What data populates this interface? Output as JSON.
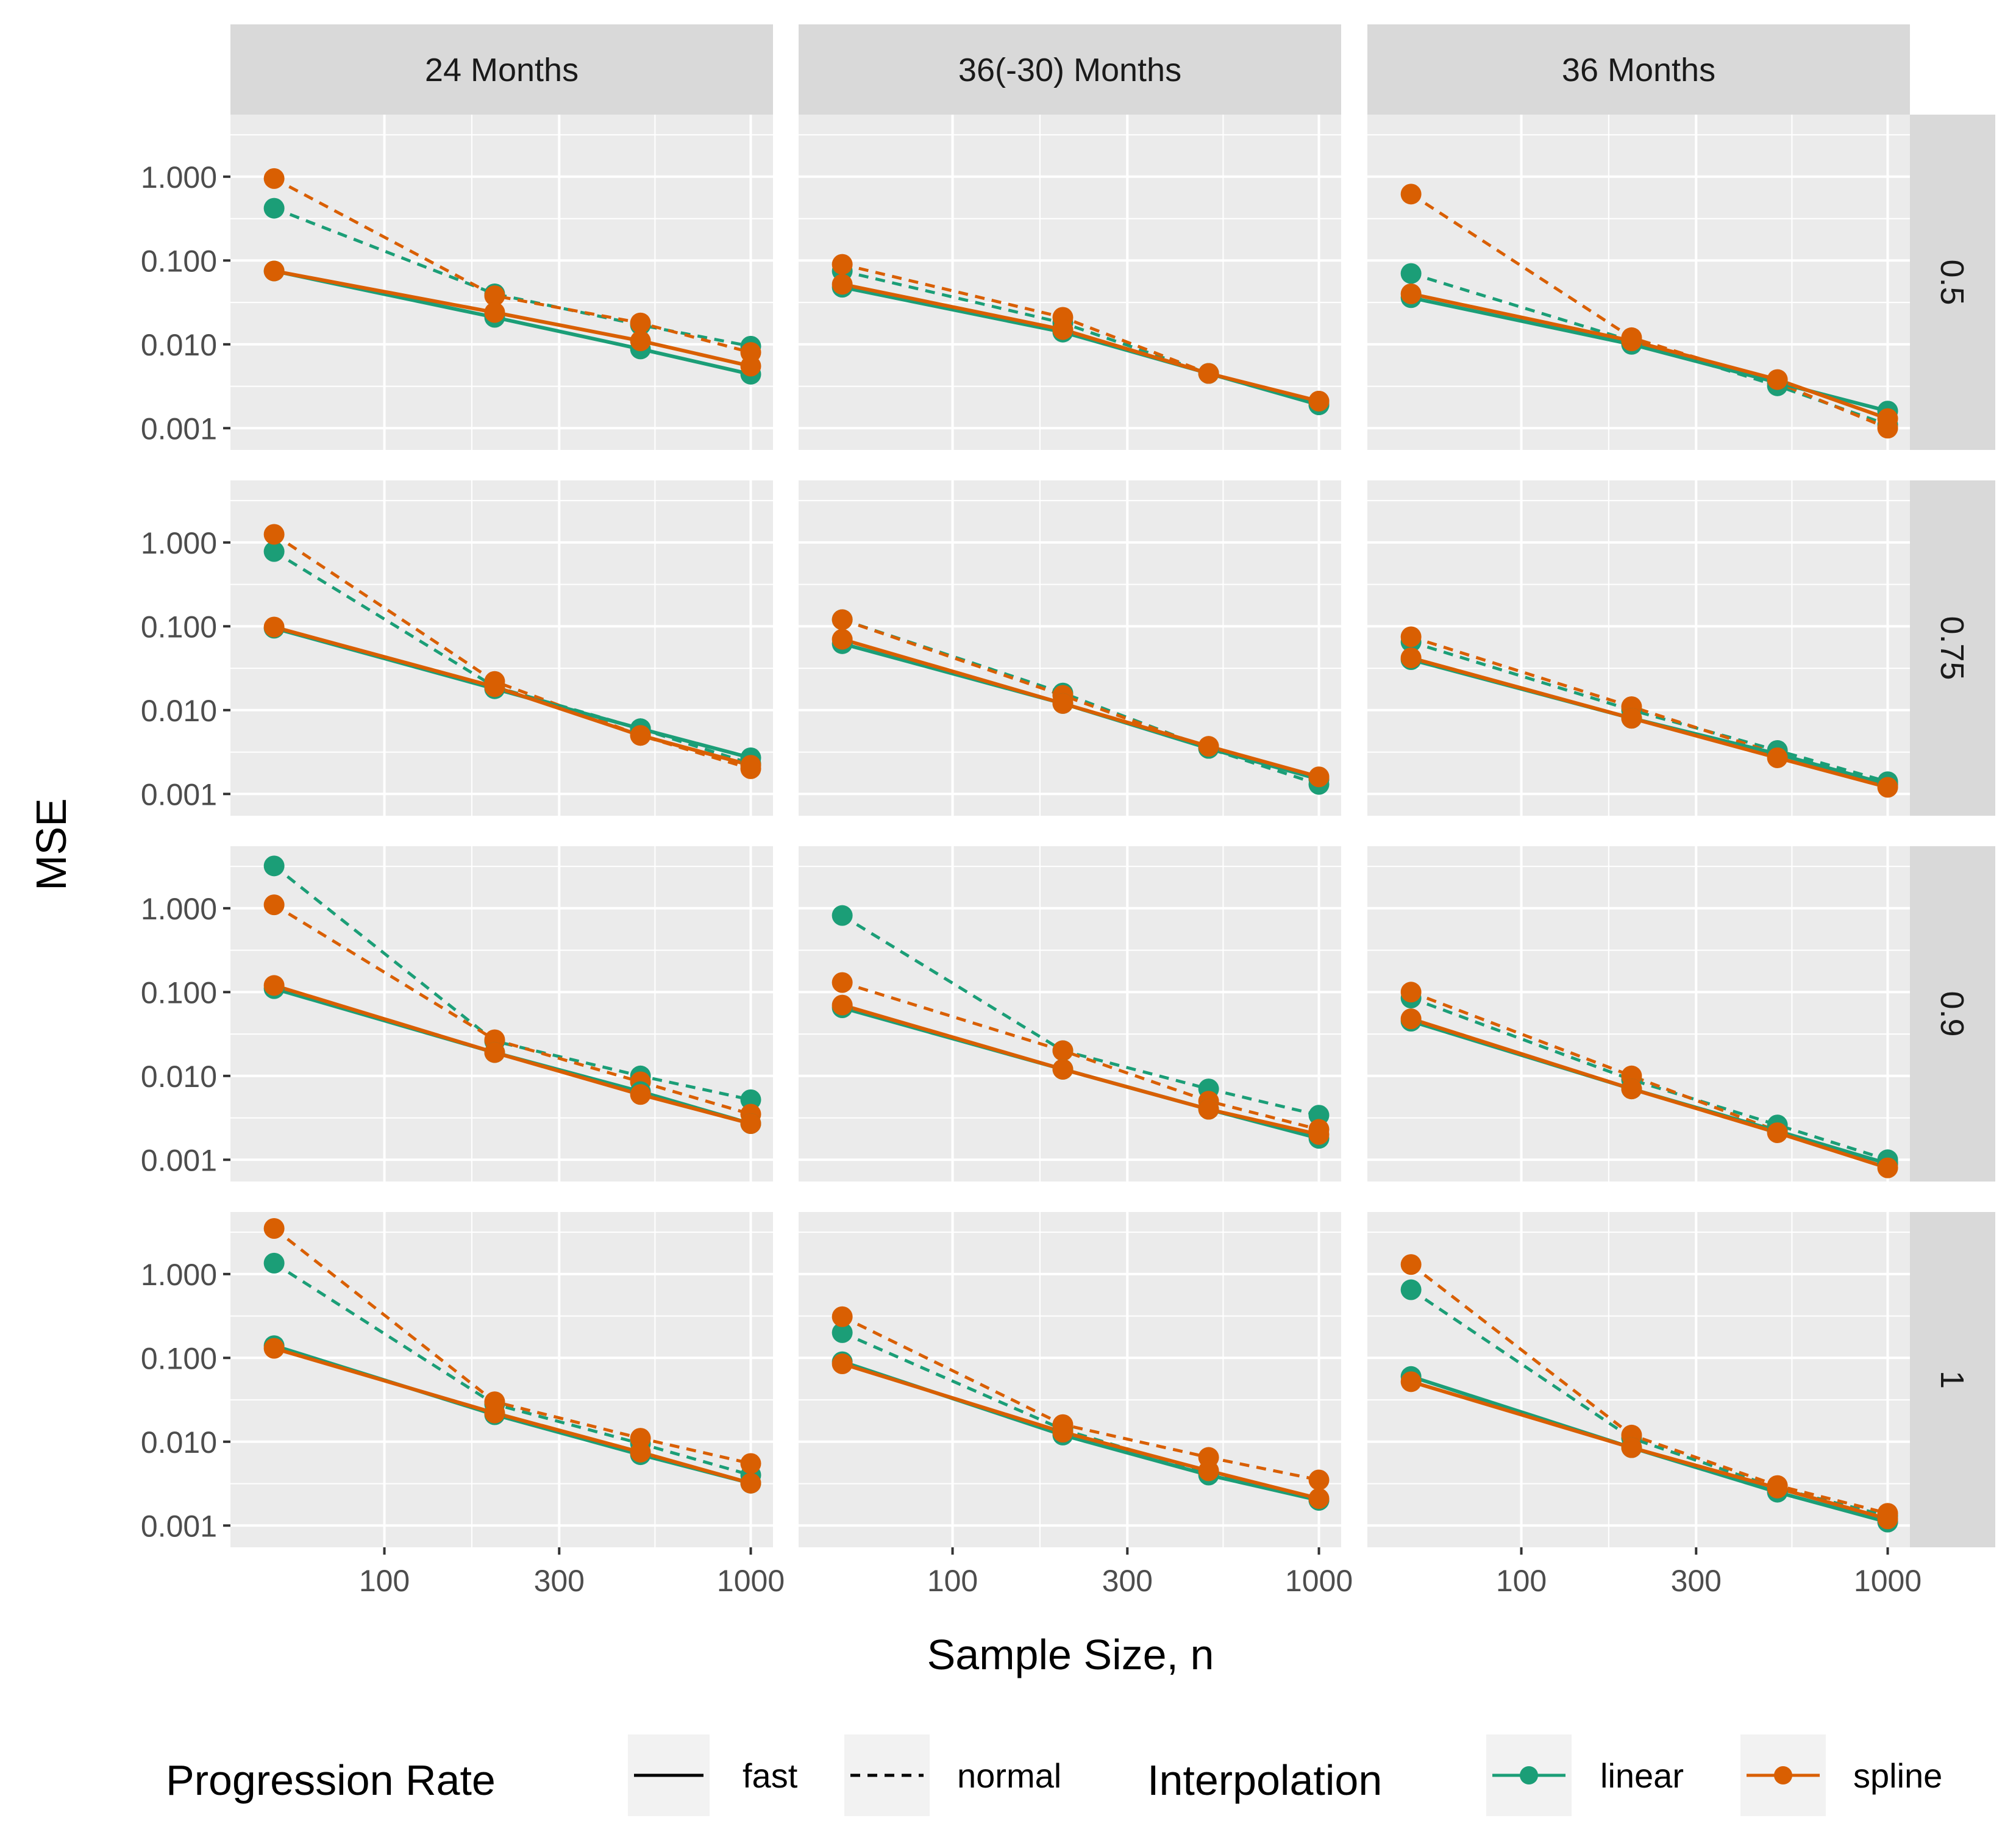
{
  "chart_data": {
    "type": "line",
    "xlabel": "Sample Size, n",
    "ylabel": "MSE",
    "x_scale": "log10",
    "y_scale": "log10",
    "x_ticks": [
      "100",
      "300",
      "1000"
    ],
    "y_ticks": [
      "0.001",
      "0.010",
      "0.100",
      "1.000"
    ],
    "xlim": [
      38,
      1150
    ],
    "ylim": [
      0.00055,
      5.5
    ],
    "grid": true,
    "legend_position": "bottom",
    "columns": [
      "24 Months",
      "36(-30) Months",
      "36 Months"
    ],
    "rows": [
      "0.5",
      "0.75",
      "0.9",
      "1"
    ],
    "x": [
      50,
      200,
      500,
      1000
    ],
    "colors": {
      "linear": "#1b9e77",
      "spline": "#d95f02"
    },
    "legend": {
      "progression_title": "Progression Rate",
      "progression_items": [
        "fast",
        "normal"
      ],
      "interpolation_title": "Interpolation",
      "interpolation_items": [
        "linear",
        "spline"
      ]
    },
    "panels": [
      {
        "column": "24 Months",
        "row": "0.5",
        "series": [
          {
            "interpolation": "linear",
            "progression": "fast",
            "values": [
              0.075,
              0.021,
              0.0088,
              0.0044
            ]
          },
          {
            "interpolation": "linear",
            "progression": "normal",
            "values": [
              0.42,
              0.04,
              0.017,
              0.0095
            ]
          },
          {
            "interpolation": "spline",
            "progression": "fast",
            "values": [
              0.075,
              0.024,
              0.011,
              0.0055
            ]
          },
          {
            "interpolation": "spline",
            "progression": "normal",
            "values": [
              0.95,
              0.038,
              0.018,
              0.008
            ]
          }
        ]
      },
      {
        "column": "36(-30) Months",
        "row": "0.5",
        "series": [
          {
            "interpolation": "linear",
            "progression": "fast",
            "values": [
              0.048,
              0.014,
              0.0045,
              0.0019
            ]
          },
          {
            "interpolation": "linear",
            "progression": "normal",
            "values": [
              0.075,
              0.018,
              0.0045,
              0.0019
            ]
          },
          {
            "interpolation": "spline",
            "progression": "fast",
            "values": [
              0.052,
              0.015,
              0.0045,
              0.0021
            ]
          },
          {
            "interpolation": "spline",
            "progression": "normal",
            "values": [
              0.09,
              0.021,
              0.0045,
              0.0021
            ]
          }
        ]
      },
      {
        "column": "36 Months",
        "row": "0.5",
        "series": [
          {
            "interpolation": "linear",
            "progression": "fast",
            "values": [
              0.036,
              0.01,
              0.0035,
              0.0016
            ]
          },
          {
            "interpolation": "linear",
            "progression": "normal",
            "values": [
              0.07,
              0.011,
              0.0032,
              0.0011
            ]
          },
          {
            "interpolation": "spline",
            "progression": "fast",
            "values": [
              0.04,
              0.011,
              0.0038,
              0.0013
            ]
          },
          {
            "interpolation": "spline",
            "progression": "normal",
            "values": [
              0.62,
              0.012,
              0.0035,
              0.001
            ]
          }
        ]
      },
      {
        "column": "24 Months",
        "row": "0.75",
        "series": [
          {
            "interpolation": "linear",
            "progression": "fast",
            "values": [
              0.095,
              0.018,
              0.006,
              0.0027
            ]
          },
          {
            "interpolation": "linear",
            "progression": "normal",
            "values": [
              0.78,
              0.019,
              0.006,
              0.0023
            ]
          },
          {
            "interpolation": "spline",
            "progression": "fast",
            "values": [
              0.098,
              0.019,
              0.005,
              0.0022
            ]
          },
          {
            "interpolation": "spline",
            "progression": "normal",
            "values": [
              1.25,
              0.022,
              0.005,
              0.002
            ]
          }
        ]
      },
      {
        "column": "36(-30) Months",
        "row": "0.75",
        "series": [
          {
            "interpolation": "linear",
            "progression": "fast",
            "values": [
              0.062,
              0.012,
              0.0035,
              0.0015
            ]
          },
          {
            "interpolation": "linear",
            "progression": "normal",
            "values": [
              0.12,
              0.016,
              0.0035,
              0.0013
            ]
          },
          {
            "interpolation": "spline",
            "progression": "fast",
            "values": [
              0.07,
              0.012,
              0.0037,
              0.0016
            ]
          },
          {
            "interpolation": "spline",
            "progression": "normal",
            "values": [
              0.12,
              0.015,
              0.0035,
              0.0015
            ]
          }
        ]
      },
      {
        "column": "36 Months",
        "row": "0.75",
        "series": [
          {
            "interpolation": "linear",
            "progression": "fast",
            "values": [
              0.04,
              0.008,
              0.003,
              0.0013
            ]
          },
          {
            "interpolation": "linear",
            "progression": "normal",
            "values": [
              0.065,
              0.01,
              0.0033,
              0.0014
            ]
          },
          {
            "interpolation": "spline",
            "progression": "fast",
            "values": [
              0.042,
              0.008,
              0.0027,
              0.0012
            ]
          },
          {
            "interpolation": "spline",
            "progression": "normal",
            "values": [
              0.075,
              0.011,
              0.003,
              0.0013
            ]
          }
        ]
      },
      {
        "column": "24 Months",
        "row": "0.9",
        "series": [
          {
            "interpolation": "linear",
            "progression": "fast",
            "values": [
              0.11,
              0.019,
              0.0065,
              0.0027
            ]
          },
          {
            "interpolation": "linear",
            "progression": "normal",
            "values": [
              3.2,
              0.026,
              0.01,
              0.0052
            ]
          },
          {
            "interpolation": "spline",
            "progression": "fast",
            "values": [
              0.12,
              0.019,
              0.006,
              0.0027
            ]
          },
          {
            "interpolation": "spline",
            "progression": "normal",
            "values": [
              1.1,
              0.027,
              0.0085,
              0.0035
            ]
          }
        ]
      },
      {
        "column": "36(-30) Months",
        "row": "0.9",
        "series": [
          {
            "interpolation": "linear",
            "progression": "fast",
            "values": [
              0.065,
              0.012,
              0.004,
              0.0018
            ]
          },
          {
            "interpolation": "linear",
            "progression": "normal",
            "values": [
              0.82,
              0.02,
              0.007,
              0.0034
            ]
          },
          {
            "interpolation": "spline",
            "progression": "fast",
            "values": [
              0.07,
              0.012,
              0.004,
              0.002
            ]
          },
          {
            "interpolation": "spline",
            "progression": "normal",
            "values": [
              0.13,
              0.02,
              0.005,
              0.0023
            ]
          }
        ]
      },
      {
        "column": "36 Months",
        "row": "0.9",
        "series": [
          {
            "interpolation": "linear",
            "progression": "fast",
            "values": [
              0.045,
              0.007,
              0.0022,
              0.0009
            ]
          },
          {
            "interpolation": "linear",
            "progression": "normal",
            "values": [
              0.085,
              0.009,
              0.0026,
              0.001
            ]
          },
          {
            "interpolation": "spline",
            "progression": "fast",
            "values": [
              0.048,
              0.007,
              0.0021,
              0.0008
            ]
          },
          {
            "interpolation": "spline",
            "progression": "normal",
            "values": [
              0.1,
              0.01,
              0.0022,
              0.0009
            ]
          }
        ]
      },
      {
        "column": "24 Months",
        "row": "1",
        "series": [
          {
            "interpolation": "linear",
            "progression": "fast",
            "values": [
              0.14,
              0.021,
              0.007,
              0.0032
            ]
          },
          {
            "interpolation": "linear",
            "progression": "normal",
            "values": [
              1.35,
              0.028,
              0.0095,
              0.004
            ]
          },
          {
            "interpolation": "spline",
            "progression": "fast",
            "values": [
              0.13,
              0.022,
              0.0075,
              0.0032
            ]
          },
          {
            "interpolation": "spline",
            "progression": "normal",
            "values": [
              3.5,
              0.03,
              0.011,
              0.0055
            ]
          }
        ]
      },
      {
        "column": "36(-30) Months",
        "row": "1",
        "series": [
          {
            "interpolation": "linear",
            "progression": "fast",
            "values": [
              0.09,
              0.012,
              0.004,
              0.002
            ]
          },
          {
            "interpolation": "linear",
            "progression": "normal",
            "values": [
              0.2,
              0.014,
              0.0042,
              0.002
            ]
          },
          {
            "interpolation": "spline",
            "progression": "fast",
            "values": [
              0.085,
              0.013,
              0.0045,
              0.0021
            ]
          },
          {
            "interpolation": "spline",
            "progression": "normal",
            "values": [
              0.31,
              0.016,
              0.0065,
              0.0035
            ]
          }
        ]
      },
      {
        "column": "36 Months",
        "row": "1",
        "series": [
          {
            "interpolation": "linear",
            "progression": "fast",
            "values": [
              0.06,
              0.0085,
              0.0025,
              0.0011
            ]
          },
          {
            "interpolation": "linear",
            "progression": "normal",
            "values": [
              0.65,
              0.011,
              0.0028,
              0.0013
            ]
          },
          {
            "interpolation": "spline",
            "progression": "fast",
            "values": [
              0.052,
              0.0085,
              0.0028,
              0.0012
            ]
          },
          {
            "interpolation": "spline",
            "progression": "normal",
            "values": [
              1.3,
              0.012,
              0.003,
              0.0014
            ]
          }
        ]
      }
    ]
  }
}
